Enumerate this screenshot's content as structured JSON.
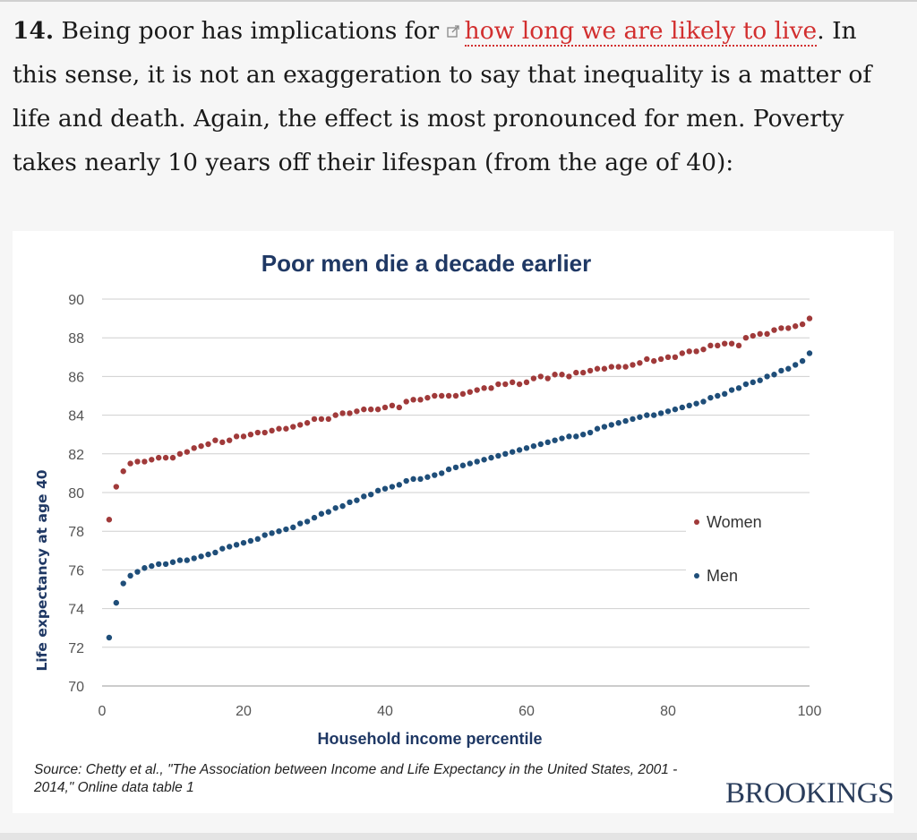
{
  "article": {
    "item_number": "14.",
    "text_before_link": " Being poor has implications for ",
    "link_text": "how long we are likely to live",
    "text_after_link": ". In this sense, it is not an exaggeration to say that inequality is a matter of life and death. Again, the effect is most pronounced for men. Poverty takes nearly 10 years off their lifespan (from the age of 40):",
    "link_color": "#d22f2f"
  },
  "chart_data": {
    "type": "scatter",
    "title": "Poor men die a decade earlier",
    "xlabel": "Household  income percentile",
    "ylabel": "Life expectancy at age 40",
    "xlim": [
      0,
      100
    ],
    "ylim": [
      70,
      90
    ],
    "x_ticks": [
      0,
      20,
      40,
      60,
      80,
      100
    ],
    "y_ticks": [
      70,
      72,
      74,
      76,
      78,
      80,
      82,
      84,
      86,
      88,
      90
    ],
    "grid": true,
    "legend_position": "right",
    "series": [
      {
        "name": "Women",
        "color": "#a03a3a",
        "x": [
          1,
          2,
          3,
          4,
          5,
          6,
          7,
          8,
          9,
          10,
          11,
          12,
          13,
          14,
          15,
          16,
          17,
          18,
          19,
          20,
          21,
          22,
          23,
          24,
          25,
          26,
          27,
          28,
          29,
          30,
          31,
          32,
          33,
          34,
          35,
          36,
          37,
          38,
          39,
          40,
          41,
          42,
          43,
          44,
          45,
          46,
          47,
          48,
          49,
          50,
          51,
          52,
          53,
          54,
          55,
          56,
          57,
          58,
          59,
          60,
          61,
          62,
          63,
          64,
          65,
          66,
          67,
          68,
          69,
          70,
          71,
          72,
          73,
          74,
          75,
          76,
          77,
          78,
          79,
          80,
          81,
          82,
          83,
          84,
          85,
          86,
          87,
          88,
          89,
          90,
          91,
          92,
          93,
          94,
          95,
          96,
          97,
          98,
          99,
          100
        ],
        "y": [
          78.6,
          80.3,
          81.1,
          81.5,
          81.6,
          81.6,
          81.7,
          81.8,
          81.8,
          81.8,
          82.0,
          82.1,
          82.3,
          82.4,
          82.5,
          82.7,
          82.6,
          82.7,
          82.9,
          82.9,
          83.0,
          83.1,
          83.1,
          83.2,
          83.3,
          83.3,
          83.4,
          83.5,
          83.6,
          83.8,
          83.8,
          83.8,
          84.0,
          84.1,
          84.1,
          84.2,
          84.3,
          84.3,
          84.3,
          84.4,
          84.5,
          84.4,
          84.7,
          84.8,
          84.8,
          84.9,
          85.0,
          85.0,
          85.0,
          85.0,
          85.1,
          85.2,
          85.3,
          85.4,
          85.4,
          85.6,
          85.6,
          85.7,
          85.6,
          85.7,
          85.9,
          86.0,
          85.9,
          86.1,
          86.1,
          86.0,
          86.2,
          86.2,
          86.3,
          86.4,
          86.4,
          86.5,
          86.5,
          86.5,
          86.6,
          86.7,
          86.9,
          86.8,
          86.9,
          87.0,
          87.0,
          87.2,
          87.3,
          87.3,
          87.4,
          87.6,
          87.6,
          87.7,
          87.7,
          87.6,
          88.0,
          88.1,
          88.2,
          88.2,
          88.4,
          88.5,
          88.5,
          88.6,
          88.7,
          89.0
        ]
      },
      {
        "name": "Men",
        "color": "#1f4e79",
        "x": [
          1,
          2,
          3,
          4,
          5,
          6,
          7,
          8,
          9,
          10,
          11,
          12,
          13,
          14,
          15,
          16,
          17,
          18,
          19,
          20,
          21,
          22,
          23,
          24,
          25,
          26,
          27,
          28,
          29,
          30,
          31,
          32,
          33,
          34,
          35,
          36,
          37,
          38,
          39,
          40,
          41,
          42,
          43,
          44,
          45,
          46,
          47,
          48,
          49,
          50,
          51,
          52,
          53,
          54,
          55,
          56,
          57,
          58,
          59,
          60,
          61,
          62,
          63,
          64,
          65,
          66,
          67,
          68,
          69,
          70,
          71,
          72,
          73,
          74,
          75,
          76,
          77,
          78,
          79,
          80,
          81,
          82,
          83,
          84,
          85,
          86,
          87,
          88,
          89,
          90,
          91,
          92,
          93,
          94,
          95,
          96,
          97,
          98,
          99,
          100
        ],
        "y": [
          72.5,
          74.3,
          75.3,
          75.7,
          75.9,
          76.1,
          76.2,
          76.3,
          76.3,
          76.4,
          76.5,
          76.5,
          76.6,
          76.7,
          76.8,
          76.9,
          77.1,
          77.2,
          77.3,
          77.4,
          77.5,
          77.6,
          77.8,
          77.9,
          78.0,
          78.1,
          78.2,
          78.4,
          78.5,
          78.7,
          78.9,
          79.0,
          79.2,
          79.3,
          79.5,
          79.6,
          79.8,
          79.9,
          80.1,
          80.2,
          80.3,
          80.4,
          80.6,
          80.7,
          80.7,
          80.8,
          80.9,
          81.0,
          81.2,
          81.3,
          81.4,
          81.5,
          81.6,
          81.7,
          81.8,
          81.9,
          82.0,
          82.1,
          82.2,
          82.3,
          82.4,
          82.5,
          82.6,
          82.7,
          82.8,
          82.9,
          82.9,
          83.0,
          83.1,
          83.3,
          83.4,
          83.5,
          83.6,
          83.7,
          83.8,
          83.9,
          84.0,
          84.0,
          84.1,
          84.2,
          84.3,
          84.4,
          84.5,
          84.6,
          84.7,
          84.9,
          85.0,
          85.1,
          85.3,
          85.4,
          85.6,
          85.7,
          85.8,
          86.0,
          86.1,
          86.3,
          86.4,
          86.6,
          86.8,
          87.2
        ]
      }
    ],
    "source": "Source: Chetty et al., \"The Association between Income and Life Expectancy in the United States, 2001 - 2014,\" Online data table 1",
    "brand": "BROOKINGS"
  }
}
